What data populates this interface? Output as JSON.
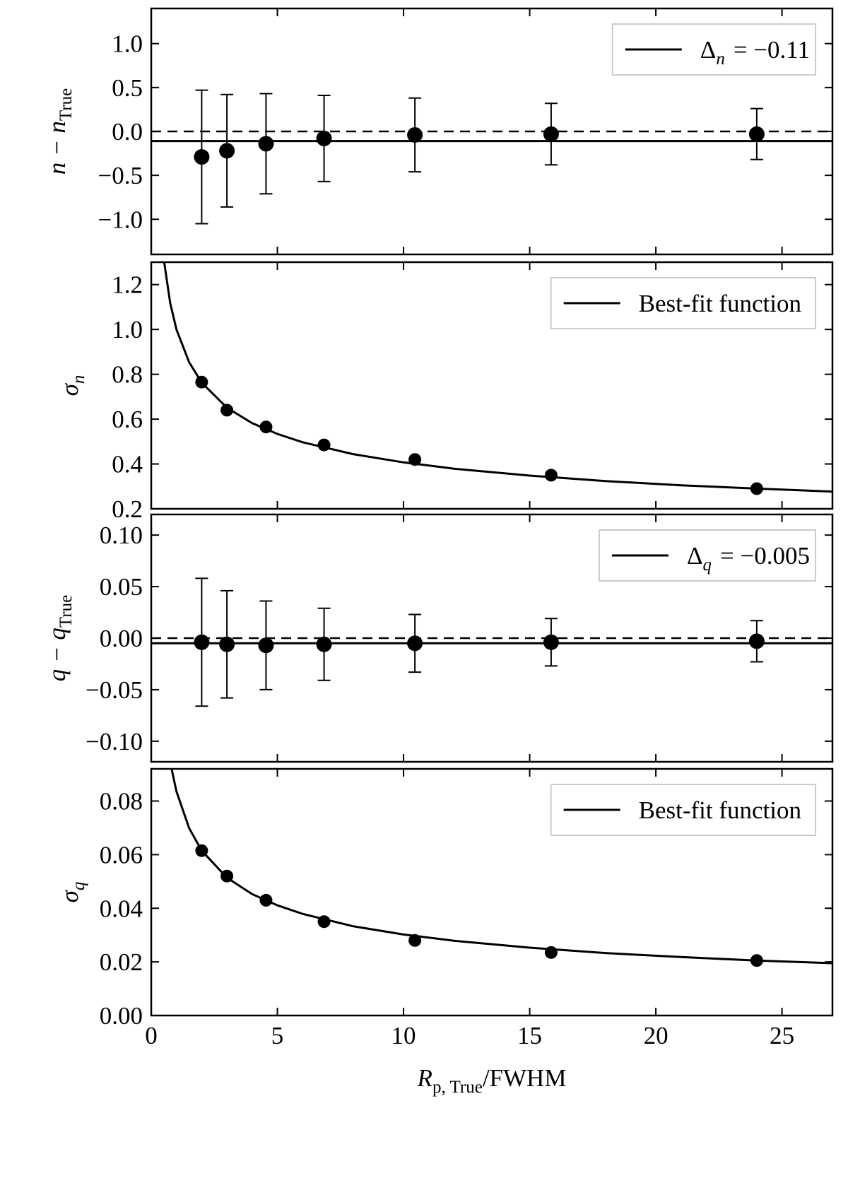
{
  "chart_data": [
    {
      "type": "errorbar",
      "color": "#000000",
      "ylabel": {
        "main": "n − n",
        "sub": "True"
      },
      "x": [
        2,
        3,
        4.55,
        6.85,
        10.45,
        15.85,
        24
      ],
      "values": [
        -0.29,
        -0.22,
        -0.14,
        -0.08,
        -0.04,
        -0.03,
        -0.03
      ],
      "errors": [
        0.76,
        0.64,
        0.57,
        0.49,
        0.42,
        0.35,
        0.29
      ],
      "reference_line": 0,
      "fit": {
        "value": -0.11,
        "legend": {
          "symbol": "Δ",
          "sub": "n",
          "text": "= −0.11"
        }
      },
      "xlim": [
        0,
        27
      ],
      "xticks": [
        0,
        5,
        10,
        15,
        20,
        25
      ],
      "ylim": [
        -1.4,
        1.4
      ],
      "yticks": [
        {
          "value": -1,
          "label": "−1.0"
        },
        {
          "value": -0.5,
          "label": "−0.5"
        },
        {
          "value": 0,
          "label": "0.0"
        },
        {
          "value": 0.5,
          "label": "0.5"
        },
        {
          "value": 1,
          "label": "1.0"
        }
      ]
    },
    {
      "type": "scatter",
      "color": "#000000",
      "ylabel": {
        "main": "σ",
        "sub": "n"
      },
      "x": [
        2,
        3,
        4.55,
        6.85,
        10.45,
        15.85,
        24
      ],
      "values": [
        0.765,
        0.64,
        0.565,
        0.485,
        0.42,
        0.35,
        0.29
      ],
      "fit": {
        "legend": "Best-fit function",
        "x": [
          0.5,
          0.75,
          1,
          1.5,
          2,
          3,
          4,
          5,
          6,
          8,
          10,
          12,
          15,
          18,
          21,
          24,
          27
        ],
        "values": [
          1.31,
          1.118,
          1.0,
          0.854,
          0.763,
          0.651,
          0.582,
          0.534,
          0.497,
          0.444,
          0.407,
          0.379,
          0.348,
          0.324,
          0.305,
          0.29,
          0.277
        ]
      },
      "xlim": [
        0,
        27
      ],
      "xticks": [
        0,
        5,
        10,
        15,
        20,
        25
      ],
      "ylim": [
        0.2,
        1.3
      ],
      "yticks": [
        0.2,
        0.4,
        0.6,
        0.8,
        {
          "value": 1,
          "label": "1.0"
        },
        1.2
      ]
    },
    {
      "type": "errorbar",
      "color": "#000000",
      "ylabel": {
        "main": "q − q",
        "sub": "True"
      },
      "x": [
        2,
        3,
        4.55,
        6.85,
        10.45,
        15.85,
        24
      ],
      "values": [
        -0.004,
        -0.006,
        -0.007,
        -0.006,
        -0.005,
        -0.004,
        -0.003
      ],
      "errors": [
        0.062,
        0.052,
        0.043,
        0.035,
        0.028,
        0.023,
        0.02
      ],
      "reference_line": 0,
      "fit": {
        "value": -0.005,
        "legend": {
          "symbol": "Δ",
          "sub": "q",
          "text": "= −0.005"
        }
      },
      "xlim": [
        0,
        27
      ],
      "xticks": [
        0,
        5,
        10,
        15,
        20,
        25
      ],
      "ylim": [
        -0.12,
        0.12
      ],
      "yticks": [
        {
          "value": -0.1,
          "label": "−0.10"
        },
        {
          "value": -0.05,
          "label": "−0.05"
        },
        {
          "value": 0,
          "label": "0.00"
        },
        {
          "value": 0.05,
          "label": "0.05"
        },
        {
          "value": 0.1,
          "label": "0.10"
        }
      ]
    },
    {
      "type": "scatter",
      "color": "#000000",
      "ylabel": {
        "main": "σ",
        "sub": "q"
      },
      "x": [
        2,
        3,
        4.55,
        6.85,
        10.45,
        15.85,
        24
      ],
      "values": [
        0.0615,
        0.052,
        0.043,
        0.035,
        0.028,
        0.0235,
        0.0205
      ],
      "fit": {
        "legend": "Best-fit function",
        "x": [
          0.8,
          1,
          1.5,
          2,
          3,
          4,
          5,
          6,
          8,
          10,
          12,
          15,
          18,
          21,
          24,
          27
        ],
        "values": [
          0.0923,
          0.0836,
          0.0699,
          0.0615,
          0.0514,
          0.0453,
          0.0411,
          0.0379,
          0.0333,
          0.0302,
          0.0279,
          0.0253,
          0.0233,
          0.0218,
          0.0205,
          0.0195
        ]
      },
      "xlabel": {
        "main": "R",
        "sub": "p, True",
        "rest": "/FWHM"
      },
      "xlim": [
        0,
        27
      ],
      "xticks": [
        0,
        5,
        10,
        15,
        20,
        25
      ],
      "ylim": [
        0,
        0.092
      ],
      "yticks": [
        {
          "value": 0,
          "label": "0.00"
        },
        {
          "value": 0.02,
          "label": "0.02"
        },
        {
          "value": 0.04,
          "label": "0.04"
        },
        {
          "value": 0.06,
          "label": "0.06"
        },
        {
          "value": 0.08,
          "label": "0.08"
        }
      ]
    }
  ]
}
